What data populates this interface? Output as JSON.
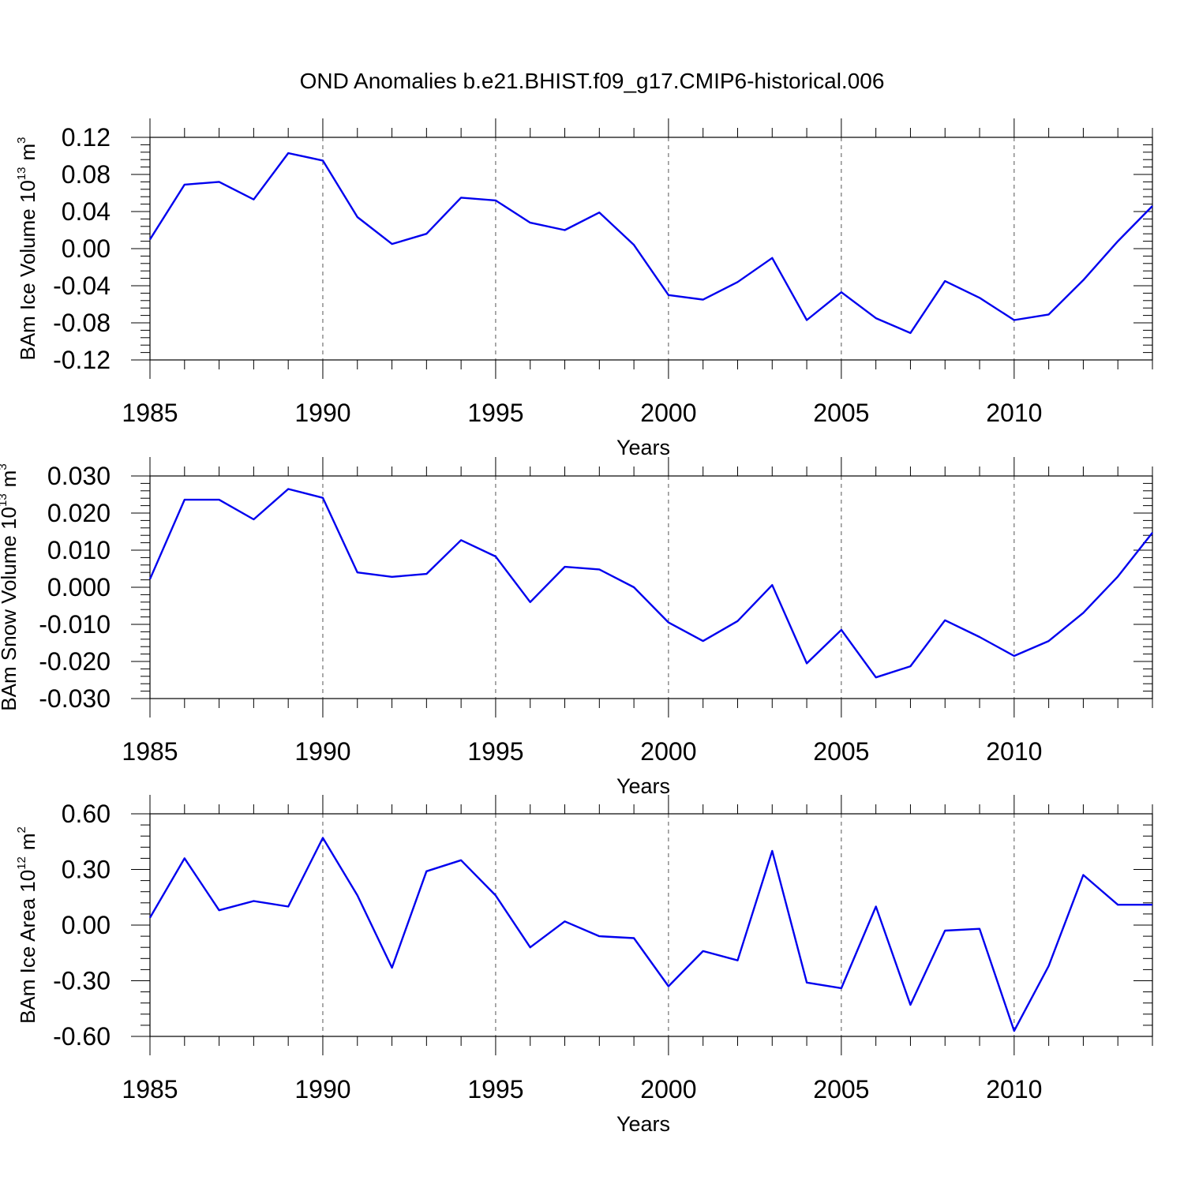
{
  "title": "OND Anomalies b.e21.BHIST.f09_g17.CMIP6-historical.006",
  "colors": {
    "series": "#0000ee",
    "axis": "#000000",
    "grid": "#555555"
  },
  "chart_data": [
    {
      "type": "line",
      "ylabel": {
        "text": "BAm Ice Volume 10",
        "exponent": "13",
        "unit": "m",
        "unit_exponent": "3"
      },
      "xlabel": "Years",
      "xlim": [
        1985,
        2014
      ],
      "ylim": [
        -0.12,
        0.12
      ],
      "x_ticks": [
        1985,
        1990,
        1995,
        2000,
        2005,
        2010
      ],
      "y_ticks": [
        "-0.12",
        "-0.08",
        "-0.04",
        "0.00",
        "0.04",
        "0.08",
        "0.12"
      ],
      "grid": "vertical-dashed-at-major-x",
      "x": [
        1985,
        1986,
        1987,
        1988,
        1989,
        1990,
        1991,
        1992,
        1993,
        1994,
        1995,
        1996,
        1997,
        1998,
        1999,
        2000,
        2001,
        2002,
        2003,
        2004,
        2005,
        2006,
        2007,
        2008,
        2009,
        2010,
        2011,
        2012,
        2013,
        2014
      ],
      "series": [
        {
          "values": [
            0.01,
            0.069,
            0.072,
            0.053,
            0.103,
            0.095,
            0.034,
            0.005,
            0.016,
            0.055,
            0.052,
            0.028,
            0.02,
            0.039,
            0.004,
            -0.05,
            -0.055,
            -0.036,
            -0.01,
            -0.077,
            -0.047,
            -0.075,
            -0.091,
            -0.035,
            -0.053,
            -0.077,
            -0.071,
            -0.034,
            0.008,
            0.046
          ]
        }
      ]
    },
    {
      "type": "line",
      "ylabel": {
        "text": "BAm Snow Volume 10",
        "exponent": "13",
        "unit": "m",
        "unit_exponent": "3"
      },
      "xlabel": "Years",
      "xlim": [
        1985,
        2014
      ],
      "ylim": [
        -0.03,
        0.03
      ],
      "x_ticks": [
        1985,
        1990,
        1995,
        2000,
        2005,
        2010
      ],
      "y_ticks": [
        "-0.030",
        "-0.020",
        "-0.010",
        "0.000",
        "0.010",
        "0.020",
        "0.030"
      ],
      "grid": "vertical-dashed-at-major-x",
      "x": [
        1985,
        1986,
        1987,
        1988,
        1989,
        1990,
        1991,
        1992,
        1993,
        1994,
        1995,
        1996,
        1997,
        1998,
        1999,
        2000,
        2001,
        2002,
        2003,
        2004,
        2005,
        2006,
        2007,
        2008,
        2009,
        2010,
        2011,
        2012,
        2013,
        2014
      ],
      "series": [
        {
          "values": [
            0.0022,
            0.0236,
            0.0236,
            0.0183,
            0.0265,
            0.0241,
            0.004,
            0.0028,
            0.0036,
            0.0127,
            0.0083,
            -0.004,
            0.0055,
            0.0048,
            0.0,
            -0.0095,
            -0.0145,
            -0.0091,
            0.0006,
            -0.0205,
            -0.0115,
            -0.0243,
            -0.0213,
            -0.0089,
            -0.0134,
            -0.0185,
            -0.0145,
            -0.0069,
            0.0029,
            0.0147
          ]
        }
      ]
    },
    {
      "type": "line",
      "ylabel": {
        "text": "BAm Ice Area 10",
        "exponent": "12",
        "unit": "m",
        "unit_exponent": "2"
      },
      "xlabel": "Years",
      "xlim": [
        1985,
        2014
      ],
      "ylim": [
        -0.6,
        0.6
      ],
      "x_ticks": [
        1985,
        1990,
        1995,
        2000,
        2005,
        2010
      ],
      "y_ticks": [
        "-0.60",
        "-0.30",
        "0.00",
        "0.30",
        "0.60"
      ],
      "grid": "vertical-dashed-at-major-x",
      "x": [
        1985,
        1986,
        1987,
        1988,
        1989,
        1990,
        1991,
        1992,
        1993,
        1994,
        1995,
        1996,
        1997,
        1998,
        1999,
        2000,
        2001,
        2002,
        2003,
        2004,
        2005,
        2006,
        2007,
        2008,
        2009,
        2010,
        2011,
        2012,
        2013,
        2014
      ],
      "series": [
        {
          "values": [
            0.04,
            0.36,
            0.08,
            0.13,
            0.1,
            0.47,
            0.16,
            -0.23,
            0.29,
            0.35,
            0.16,
            -0.12,
            0.02,
            -0.06,
            -0.07,
            -0.33,
            -0.14,
            -0.19,
            0.4,
            -0.31,
            -0.34,
            0.1,
            -0.43,
            -0.03,
            -0.02,
            -0.57,
            -0.22,
            0.27,
            0.11,
            0.11
          ]
        }
      ]
    }
  ]
}
